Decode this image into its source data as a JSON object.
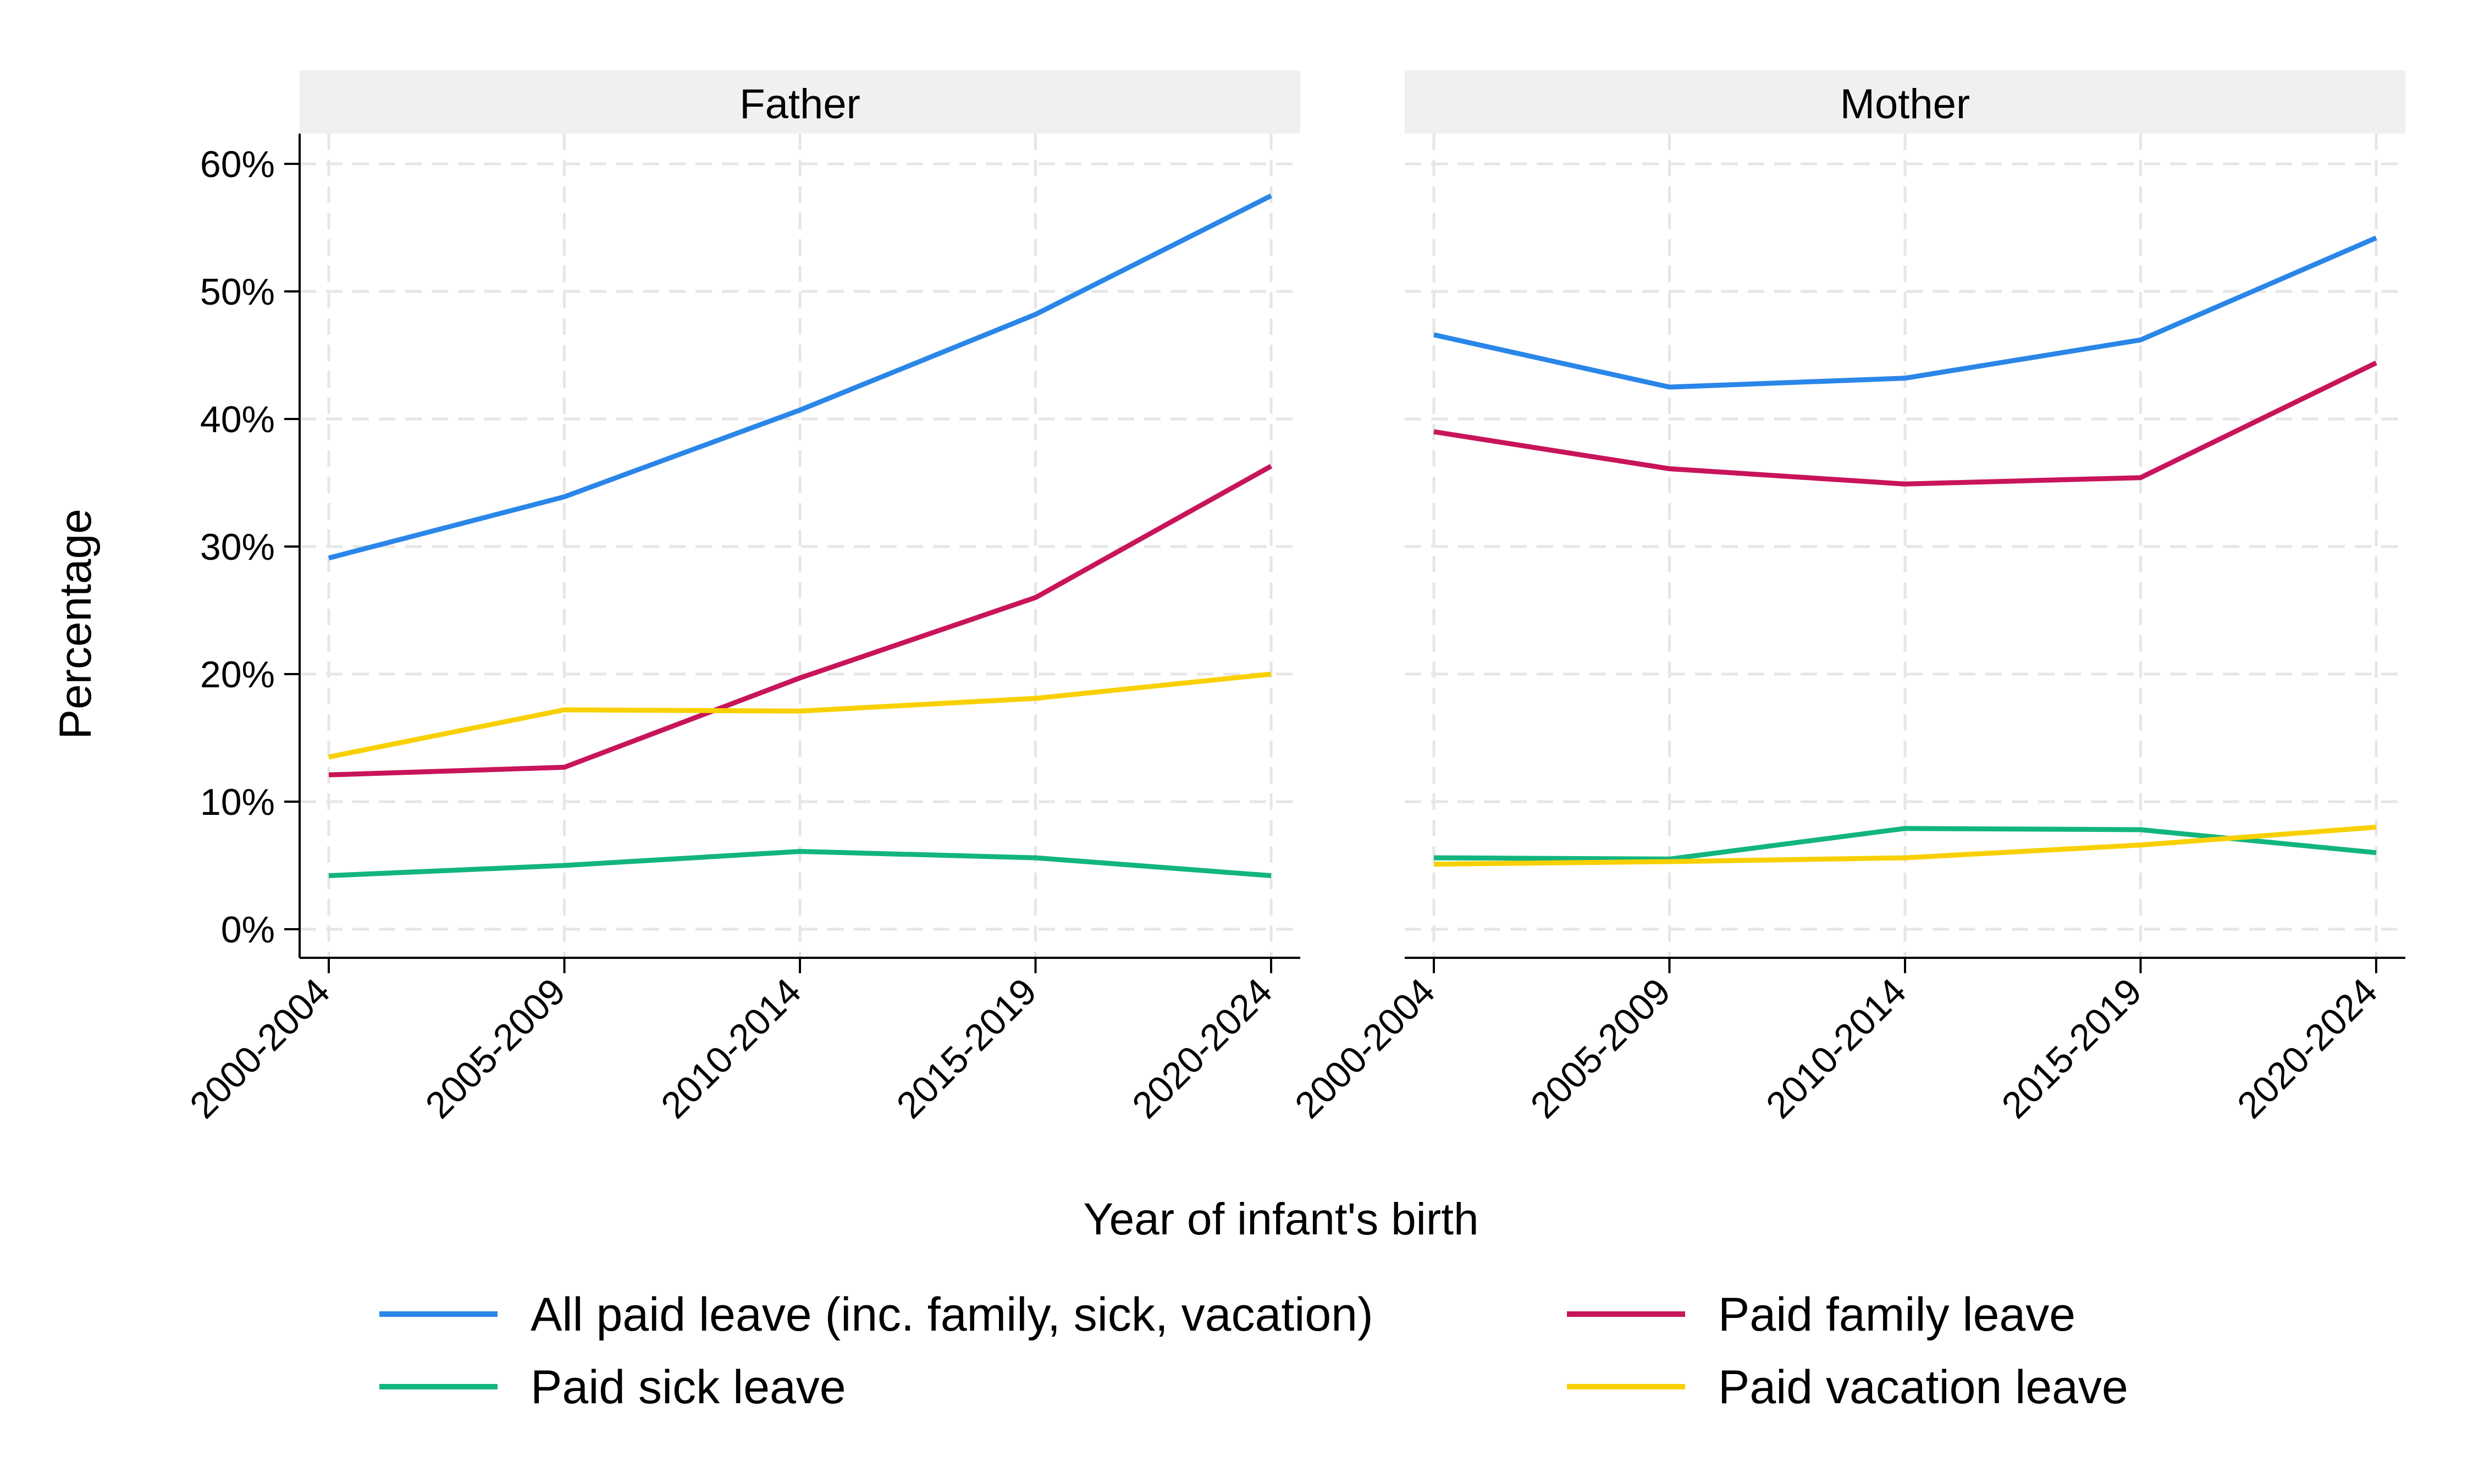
{
  "chart_data": {
    "type": "line",
    "xlabel": "Year of infant's birth",
    "ylabel": "Percentage",
    "ylim": [
      0,
      60
    ],
    "ytick_values": [
      0,
      10,
      20,
      30,
      40,
      50,
      60
    ],
    "ytick_labels": [
      "0%",
      "10%",
      "20%",
      "30%",
      "40%",
      "50%",
      "60%"
    ],
    "grid": true,
    "categories": [
      "2000-2004",
      "2005-2009",
      "2010-2014",
      "2015-2019",
      "2020-2024"
    ],
    "legend_position": "bottom",
    "series_styles": [
      {
        "name": "All paid leave (inc. family, sick, vacation)",
        "color": "#2a86e8"
      },
      {
        "name": "Paid family leave",
        "color": "#c8145a"
      },
      {
        "name": "Paid sick leave",
        "color": "#12b57e"
      },
      {
        "name": "Paid vacation leave",
        "color": "#f8d000"
      }
    ],
    "panels": [
      {
        "title": "Father",
        "series": [
          {
            "name": "All paid leave (inc. family, sick, vacation)",
            "values": [
              29.1,
              33.9,
              40.7,
              48.2,
              57.5
            ]
          },
          {
            "name": "Paid family leave",
            "values": [
              12.1,
              12.7,
              19.7,
              26.0,
              36.3
            ]
          },
          {
            "name": "Paid sick leave",
            "values": [
              4.2,
              5.0,
              6.1,
              5.6,
              4.2
            ]
          },
          {
            "name": "Paid vacation leave",
            "values": [
              13.5,
              17.2,
              17.1,
              18.1,
              20.0
            ]
          }
        ]
      },
      {
        "title": "Mother",
        "series": [
          {
            "name": "All paid leave (inc. family, sick, vacation)",
            "values": [
              46.6,
              42.5,
              43.2,
              46.2,
              54.2
            ]
          },
          {
            "name": "Paid family leave",
            "values": [
              39.0,
              36.1,
              34.9,
              35.4,
              44.4
            ]
          },
          {
            "name": "Paid sick leave",
            "values": [
              5.6,
              5.5,
              7.9,
              7.8,
              6.0
            ]
          },
          {
            "name": "Paid vacation leave",
            "values": [
              5.1,
              5.3,
              5.6,
              6.6,
              8.0
            ]
          }
        ]
      }
    ]
  }
}
